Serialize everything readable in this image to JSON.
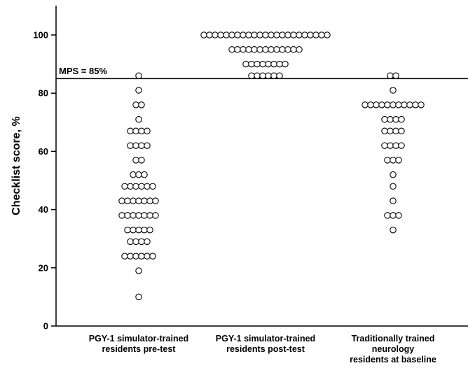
{
  "chart_data": {
    "type": "scatter",
    "subtype": "dot-plot",
    "ylabel": "Checklist score, %",
    "ylim": [
      0,
      110
    ],
    "yticks": [
      0,
      20,
      40,
      60,
      80,
      100
    ],
    "ytick_labels": [
      "0",
      "20",
      "40",
      "60",
      "80",
      "100"
    ],
    "grid": false,
    "legend": "none",
    "marker": {
      "shape": "open-circle",
      "stroke": "#000000",
      "fill": "#ffffff"
    },
    "reference_line": {
      "y": 85,
      "label": "MPS = 85%"
    },
    "groups": [
      {
        "label_lines": [
          "PGY-1 simulator-trained",
          "residents pre-test"
        ],
        "points": [
          {
            "y": 86,
            "count": 1
          },
          {
            "y": 81,
            "count": 1
          },
          {
            "y": 76,
            "count": 2
          },
          {
            "y": 71,
            "count": 1
          },
          {
            "y": 67,
            "count": 4
          },
          {
            "y": 62,
            "count": 4
          },
          {
            "y": 57,
            "count": 2
          },
          {
            "y": 52,
            "count": 3
          },
          {
            "y": 48,
            "count": 6
          },
          {
            "y": 43,
            "count": 7
          },
          {
            "y": 38,
            "count": 7
          },
          {
            "y": 33,
            "count": 5
          },
          {
            "y": 29,
            "count": 4
          },
          {
            "y": 24,
            "count": 6
          },
          {
            "y": 19,
            "count": 1
          },
          {
            "y": 10,
            "count": 1
          }
        ]
      },
      {
        "label_lines": [
          "PGY-1 simulator-trained",
          "residents post-test"
        ],
        "points": [
          {
            "y": 100,
            "count": 23
          },
          {
            "y": 95,
            "count": 13
          },
          {
            "y": 90,
            "count": 8
          },
          {
            "y": 86,
            "count": 6
          }
        ]
      },
      {
        "label_lines": [
          "Traditionally trained",
          "neurology",
          "residents at baseline"
        ],
        "points": [
          {
            "y": 86,
            "count": 2
          },
          {
            "y": 81,
            "count": 1
          },
          {
            "y": 76,
            "count": 11
          },
          {
            "y": 71,
            "count": 4
          },
          {
            "y": 67,
            "count": 4
          },
          {
            "y": 62,
            "count": 4
          },
          {
            "y": 57,
            "count": 3
          },
          {
            "y": 52,
            "count": 1
          },
          {
            "y": 48,
            "count": 1
          },
          {
            "y": 43,
            "count": 1
          },
          {
            "y": 38,
            "count": 3
          },
          {
            "y": 33,
            "count": 1
          }
        ]
      }
    ]
  }
}
